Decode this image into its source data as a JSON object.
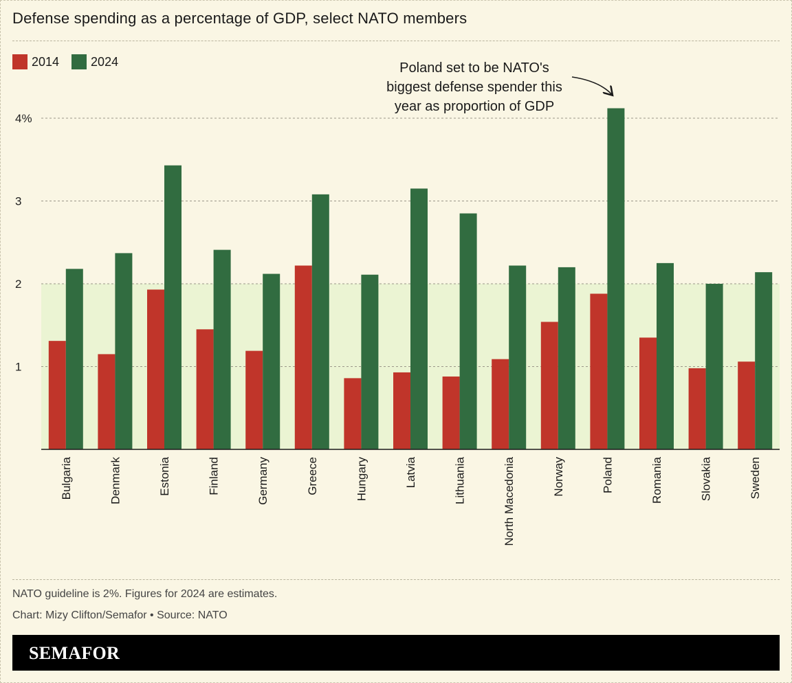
{
  "title": "Defense spending as a percentage of GDP, select NATO members",
  "legend": {
    "items": [
      {
        "label": "2014",
        "color": "#c0352a"
      },
      {
        "label": "2024",
        "color": "#316c40"
      }
    ]
  },
  "chart_data": {
    "type": "bar",
    "categories": [
      "Bulgaria",
      "Denmark",
      "Estonia",
      "Finland",
      "Germany",
      "Greece",
      "Hungary",
      "Latvia",
      "Lithuania",
      "North Macedonia",
      "Norway",
      "Poland",
      "Romania",
      "Slovakia",
      "Sweden"
    ],
    "series": [
      {
        "name": "2014",
        "color": "#c0352a",
        "values": [
          1.31,
          1.15,
          1.93,
          1.45,
          1.19,
          2.22,
          0.86,
          0.93,
          0.88,
          1.09,
          1.54,
          1.88,
          1.35,
          0.98,
          1.06
        ]
      },
      {
        "name": "2024",
        "color": "#316c40",
        "values": [
          2.18,
          2.37,
          3.43,
          2.41,
          2.12,
          3.08,
          2.11,
          3.15,
          2.85,
          2.22,
          2.2,
          4.12,
          2.25,
          2.0,
          2.14
        ]
      }
    ],
    "yticks": [
      {
        "value": 1,
        "label": "1"
      },
      {
        "value": 2,
        "label": "2"
      },
      {
        "value": 3,
        "label": "3"
      },
      {
        "value": 4,
        "label": "4%"
      }
    ],
    "ylim": [
      0,
      4.3
    ],
    "grid": true,
    "guideline_band": {
      "from": 0,
      "to": 2,
      "color": "#ebf4d3"
    },
    "annotation": {
      "lines": [
        "Poland set to be NATO's",
        "biggest defense spender this",
        "year as proportion of GDP"
      ],
      "target_category": "Poland"
    },
    "xlabel": "",
    "ylabel": ""
  },
  "notes": {
    "guideline": "NATO guideline is 2%. Figures for 2024 are estimates.",
    "credit": "Chart: Mizy Clifton/Semafor  • Source: NATO"
  },
  "footer": {
    "brand": "SEMAFOR"
  }
}
